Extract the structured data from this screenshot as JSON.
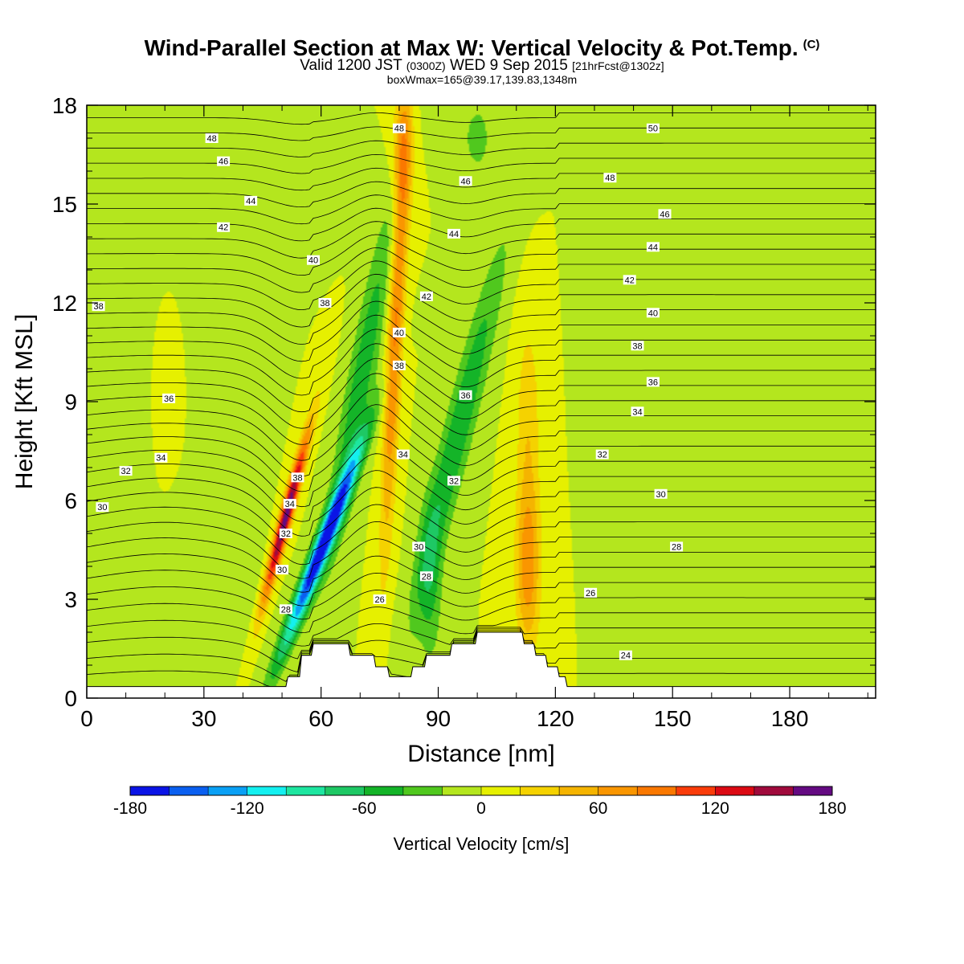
{
  "titles": {
    "main": "Wind-Parallel Section at Max W: Vertical Velocity & Pot.Temp.",
    "main_mark": "(C)",
    "valid_prefix": "Valid 1200 JST",
    "valid_zulu": "(0300Z)",
    "valid_date": "WED 9 Sep 2015",
    "forecast": "[21hrFcst@1302z]",
    "box": "boxWmax=165@39.17,139.83,1348m"
  },
  "chart_data": {
    "type": "heatmap",
    "xlabel": "Distance [nm]",
    "ylabel": "Height [Kft MSL]",
    "xlim": [
      0,
      202
    ],
    "ylim": [
      0,
      18
    ],
    "xticks": [
      0,
      30,
      60,
      90,
      120,
      150,
      180
    ],
    "yticks": [
      0,
      3,
      6,
      9,
      12,
      15,
      18
    ],
    "grid": false,
    "colorbar": {
      "label": "Vertical Velocity [cm/s]",
      "ticks": [
        -180,
        -120,
        -60,
        0,
        60,
        120,
        180
      ],
      "levels": [
        -180,
        -160,
        -140,
        -120,
        -100,
        -80,
        -60,
        -40,
        -20,
        0,
        20,
        40,
        60,
        80,
        100,
        120,
        140,
        160,
        180
      ],
      "colors": [
        "#0a14e6",
        "#0a5ff0",
        "#0aa0f5",
        "#14f0f0",
        "#1ee6a0",
        "#1ec864",
        "#14b428",
        "#50c81e",
        "#b4e61e",
        "#e6f000",
        "#f5d200",
        "#f5b400",
        "#fa9600",
        "#fa7800",
        "#fa3c0a",
        "#dc0a14",
        "#a00a3c",
        "#640a82"
      ]
    },
    "terrain": [
      {
        "x": 0,
        "h": 0.35
      },
      {
        "x": 51,
        "h": 0.35
      },
      {
        "x": 51.5,
        "h": 0.65
      },
      {
        "x": 54.5,
        "h": 0.65
      },
      {
        "x": 55,
        "h": 1.3
      },
      {
        "x": 57.5,
        "h": 1.3
      },
      {
        "x": 58,
        "h": 1.65
      },
      {
        "x": 67,
        "h": 1.65
      },
      {
        "x": 67.5,
        "h": 1.3
      },
      {
        "x": 73.5,
        "h": 1.3
      },
      {
        "x": 74,
        "h": 0.95
      },
      {
        "x": 77,
        "h": 0.95
      },
      {
        "x": 77.5,
        "h": 0.65
      },
      {
        "x": 83,
        "h": 0.65
      },
      {
        "x": 83.5,
        "h": 0.95
      },
      {
        "x": 86.5,
        "h": 0.95
      },
      {
        "x": 87,
        "h": 1.3
      },
      {
        "x": 93,
        "h": 1.3
      },
      {
        "x": 93.5,
        "h": 1.65
      },
      {
        "x": 99.5,
        "h": 1.65
      },
      {
        "x": 100,
        "h": 2.0
      },
      {
        "x": 111.5,
        "h": 2.0
      },
      {
        "x": 112,
        "h": 1.65
      },
      {
        "x": 114.5,
        "h": 1.65
      },
      {
        "x": 115,
        "h": 1.3
      },
      {
        "x": 117.5,
        "h": 1.3
      },
      {
        "x": 118,
        "h": 0.95
      },
      {
        "x": 120.5,
        "h": 0.95
      },
      {
        "x": 121,
        "h": 0.65
      },
      {
        "x": 122.5,
        "h": 0.65
      },
      {
        "x": 123,
        "h": 0.35
      },
      {
        "x": 202,
        "h": 0.35
      }
    ],
    "w_field": [
      {
        "name": "updraft-a",
        "x": 51,
        "y": 5.5,
        "sx": 1.6,
        "sy": 2.6,
        "w": 175,
        "tilt": 2.2
      },
      {
        "name": "downdraft-a",
        "x": 60,
        "y": 4.5,
        "sx": 2.3,
        "sy": 3.2,
        "w": -180,
        "tilt": 3.2
      },
      {
        "name": "updraft-b",
        "x": 79,
        "y": 11,
        "sx": 2.0,
        "sy": 6.5,
        "w": 85,
        "tilt": 0.4
      },
      {
        "name": "updraft-b-top",
        "x": 81,
        "y": 16.5,
        "sx": 2.5,
        "sy": 2.0,
        "w": 60,
        "tilt": 0
      },
      {
        "name": "downdraft-b",
        "x": 70,
        "y": 9.5,
        "sx": 3.5,
        "sy": 5.5,
        "w": -55,
        "tilt": 1.5
      },
      {
        "name": "downdraft-c",
        "x": 95,
        "y": 8,
        "sx": 3.8,
        "sy": 5.5,
        "w": -60,
        "tilt": 2.0
      },
      {
        "name": "downdraft-d",
        "x": 88,
        "y": 3.5,
        "sx": 3.0,
        "sy": 2.5,
        "w": -40,
        "tilt": 0
      },
      {
        "name": "updraft-c",
        "x": 113,
        "y": 4.0,
        "sx": 3.0,
        "sy": 2.5,
        "w": 75,
        "tilt": 0
      },
      {
        "name": "updraft-c-upper",
        "x": 113,
        "y": 8.5,
        "sx": 3.0,
        "sy": 3.0,
        "w": 35,
        "tilt": 0
      },
      {
        "name": "downdraft-e",
        "x": 15,
        "y": 14,
        "sx": 10,
        "sy": 4,
        "w": -18,
        "tilt": 0
      },
      {
        "name": "downdraft-f",
        "x": 155,
        "y": 14.5,
        "sx": 12,
        "sy": 4,
        "w": -18,
        "tilt": 0
      },
      {
        "name": "downdraft-g",
        "x": 100,
        "y": 17,
        "sx": 5,
        "sy": 1.5,
        "w": -25,
        "tilt": 0
      },
      {
        "name": "updraft-d",
        "x": 20,
        "y": 11,
        "sx": 4,
        "sy": 2.5,
        "w": 15,
        "tilt": 0
      },
      {
        "name": "downdraft-h",
        "x": 35,
        "y": 3.5,
        "sx": 8,
        "sy": 2,
        "w": -18,
        "tilt": 0
      },
      {
        "name": "downdraft-i",
        "x": 8,
        "y": 2,
        "sx": 8,
        "sy": 1.5,
        "w": -18,
        "tilt": 0
      }
    ],
    "theta_labels": [
      {
        "value": "48",
        "x": 32,
        "y": 17.0
      },
      {
        "value": "46",
        "x": 35,
        "y": 16.3
      },
      {
        "value": "44",
        "x": 42,
        "y": 15.1
      },
      {
        "value": "42",
        "x": 35,
        "y": 14.3
      },
      {
        "value": "40",
        "x": 58,
        "y": 13.3
      },
      {
        "value": "38",
        "x": 3,
        "y": 11.9
      },
      {
        "value": "38",
        "x": 61,
        "y": 12.0
      },
      {
        "value": "36",
        "x": 21,
        "y": 9.1
      },
      {
        "value": "34",
        "x": 19,
        "y": 7.3
      },
      {
        "value": "32",
        "x": 10,
        "y": 6.9
      },
      {
        "value": "30",
        "x": 4,
        "y": 5.8
      },
      {
        "value": "48",
        "x": 80,
        "y": 17.3
      },
      {
        "value": "46",
        "x": 97,
        "y": 15.7
      },
      {
        "value": "44",
        "x": 94,
        "y": 14.1
      },
      {
        "value": "42",
        "x": 87,
        "y": 12.2
      },
      {
        "value": "40",
        "x": 80,
        "y": 11.1
      },
      {
        "value": "38",
        "x": 80,
        "y": 10.1
      },
      {
        "value": "36",
        "x": 97,
        "y": 9.2
      },
      {
        "value": "34",
        "x": 81,
        "y": 7.4
      },
      {
        "value": "32",
        "x": 94,
        "y": 6.6
      },
      {
        "value": "30",
        "x": 85,
        "y": 4.6
      },
      {
        "value": "28",
        "x": 87,
        "y": 3.7
      },
      {
        "value": "26",
        "x": 75,
        "y": 3.0
      },
      {
        "value": "38",
        "x": 54,
        "y": 6.7
      },
      {
        "value": "34",
        "x": 52,
        "y": 5.9
      },
      {
        "value": "32",
        "x": 51,
        "y": 5.0
      },
      {
        "value": "30",
        "x": 50,
        "y": 3.9
      },
      {
        "value": "28",
        "x": 51,
        "y": 2.7
      },
      {
        "value": "50",
        "x": 145,
        "y": 17.3
      },
      {
        "value": "48",
        "x": 134,
        "y": 15.8
      },
      {
        "value": "46",
        "x": 148,
        "y": 14.7
      },
      {
        "value": "44",
        "x": 145,
        "y": 13.7
      },
      {
        "value": "42",
        "x": 139,
        "y": 12.7
      },
      {
        "value": "40",
        "x": 145,
        "y": 11.7
      },
      {
        "value": "38",
        "x": 141,
        "y": 10.7
      },
      {
        "value": "36",
        "x": 145,
        "y": 9.6
      },
      {
        "value": "34",
        "x": 141,
        "y": 8.7
      },
      {
        "value": "32",
        "x": 132,
        "y": 7.4
      },
      {
        "value": "30",
        "x": 147,
        "y": 6.2
      },
      {
        "value": "28",
        "x": 151,
        "y": 4.6
      },
      {
        "value": "26",
        "x": 129,
        "y": 3.2
      },
      {
        "value": "24",
        "x": 138,
        "y": 1.3
      }
    ]
  }
}
